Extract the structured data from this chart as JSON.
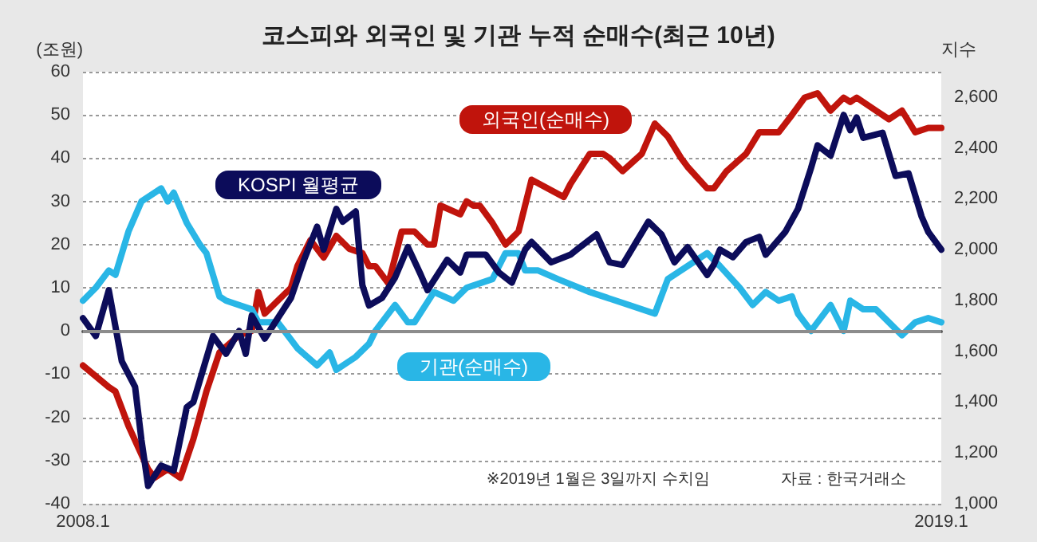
{
  "chart_data": {
    "type": "line",
    "title": "코스피와 외국인 및 기관 누적 순매수(최근 10년)",
    "ylabel": "(조원)",
    "y2label": "지수",
    "annotations": [
      "※2019년 1월은 3일까지 수치임",
      "자료 : 한국거래소"
    ],
    "xlim": [
      "2008-01",
      "2019-01"
    ],
    "xticks": [
      {
        "value": "2008-01",
        "label": "2008.1"
      },
      {
        "value": "2019-01",
        "label": "2019.1"
      }
    ],
    "ylim": [
      -40,
      60
    ],
    "yticks": [
      -40,
      -30,
      -20,
      -10,
      0,
      10,
      20,
      30,
      40,
      50,
      60
    ],
    "y2lim": [
      1000,
      2700
    ],
    "y2ticks": [
      {
        "value": 1000,
        "label": "1,000"
      },
      {
        "value": 1200,
        "label": "1,200"
      },
      {
        "value": 1400,
        "label": "1,400"
      },
      {
        "value": 1600,
        "label": "1,600"
      },
      {
        "value": 1800,
        "label": "1,800"
      },
      {
        "value": 2000,
        "label": "2,000"
      },
      {
        "value": 2200,
        "label": "2,200"
      },
      {
        "value": 2400,
        "label": "2,400"
      },
      {
        "value": 2600,
        "label": "2,600"
      }
    ],
    "grid": "y",
    "legend": false,
    "marker": "none",
    "line_style": "solid",
    "ref_lines": [
      {
        "axis": "y",
        "value": 0,
        "color": "#8c8c8c"
      }
    ],
    "series": [
      {
        "name": "외국인(순매수)",
        "color": "#c0140c",
        "x": [
          "2008-01",
          "2008-05",
          "2008-06",
          "2008-08",
          "2008-11",
          "2008-12",
          "2009-02",
          "2009-04",
          "2009-06",
          "2009-08",
          "2009-10",
          "2010-01",
          "2010-03",
          "2010-04",
          "2010-05",
          "2010-07",
          "2010-09",
          "2010-10",
          "2010-12",
          "2011-02",
          "2011-04",
          "2011-06",
          "2011-08",
          "2011-09",
          "2011-10",
          "2011-12",
          "2012-02",
          "2012-04",
          "2012-06",
          "2012-07",
          "2012-08",
          "2012-11",
          "2012-12",
          "2013-01",
          "2013-02",
          "2013-04",
          "2013-06",
          "2013-08",
          "2013-10",
          "2014-03",
          "2014-04",
          "2014-07",
          "2014-09",
          "2014-10",
          "2014-12",
          "2015-03",
          "2015-05",
          "2015-07",
          "2015-09",
          "2015-10",
          "2016-01",
          "2016-02",
          "2016-04",
          "2016-07",
          "2016-09",
          "2016-12",
          "2017-02",
          "2017-04",
          "2017-06",
          "2017-08",
          "2017-10",
          "2017-11",
          "2017-12",
          "2018-03",
          "2018-05",
          "2018-07",
          "2018-09",
          "2018-11",
          "2019-01"
        ],
        "values": [
          -8,
          -13,
          -14,
          -22,
          -32,
          -34,
          -32,
          -34,
          -25,
          -14,
          -5,
          -1,
          0,
          9,
          4,
          7,
          10,
          15,
          21,
          17,
          22,
          19,
          18,
          15,
          15,
          11,
          23,
          23,
          20,
          20,
          29,
          27,
          30,
          29,
          29,
          25,
          20,
          23,
          35,
          31,
          34,
          41,
          41,
          40,
          37,
          41,
          48,
          45,
          40,
          38,
          33,
          33,
          37,
          41,
          46,
          46,
          50,
          54,
          55,
          51,
          54,
          53,
          54,
          51,
          49,
          51,
          46,
          47,
          47
        ]
      },
      {
        "name": "KOSPI 월평균",
        "color": "#0c0c5a",
        "axis": "y2",
        "x": [
          "2008-01",
          "2008-03",
          "2008-05",
          "2008-07",
          "2008-09",
          "2008-10",
          "2008-11",
          "2009-01",
          "2009-03",
          "2009-05",
          "2009-06",
          "2009-09",
          "2009-11",
          "2010-01",
          "2010-02",
          "2010-03",
          "2010-05",
          "2010-07",
          "2010-09",
          "2010-11",
          "2011-01",
          "2011-02",
          "2011-04",
          "2011-05",
          "2011-07",
          "2011-08",
          "2011-09",
          "2011-11",
          "2012-01",
          "2012-03",
          "2012-05",
          "2012-06",
          "2012-09",
          "2012-11",
          "2012-12",
          "2013-03",
          "2013-05",
          "2013-07",
          "2013-09",
          "2013-10",
          "2014-01",
          "2014-04",
          "2014-05",
          "2014-08",
          "2014-10",
          "2014-12",
          "2015-04",
          "2015-06",
          "2015-08",
          "2015-10",
          "2016-01",
          "2016-02",
          "2016-03",
          "2016-05",
          "2016-07",
          "2016-09",
          "2016-10",
          "2017-01",
          "2017-03",
          "2017-05",
          "2017-06",
          "2017-08",
          "2017-10",
          "2017-11",
          "2017-12",
          "2018-01",
          "2018-04",
          "2018-06",
          "2018-08",
          "2018-10",
          "2018-11",
          "2019-01"
        ],
        "values": [
          1730,
          1660,
          1840,
          1560,
          1460,
          1250,
          1070,
          1150,
          1130,
          1380,
          1400,
          1660,
          1590,
          1680,
          1590,
          1740,
          1650,
          1730,
          1810,
          1960,
          2090,
          2000,
          2160,
          2110,
          2150,
          1860,
          1780,
          1810,
          1890,
          2010,
          1900,
          1840,
          1960,
          1910,
          1980,
          1980,
          1910,
          1870,
          2000,
          2030,
          1950,
          1980,
          2000,
          2060,
          1950,
          1940,
          2110,
          2060,
          1950,
          2010,
          1900,
          1940,
          2000,
          1970,
          2030,
          2050,
          1980,
          2070,
          2160,
          2320,
          2410,
          2370,
          2530,
          2470,
          2520,
          2440,
          2460,
          2290,
          2300,
          2130,
          2070,
          2000
        ]
      },
      {
        "name": "기관(순매수)",
        "color": "#29b6e6",
        "x": [
          "2008-01",
          "2008-03",
          "2008-05",
          "2008-06",
          "2008-08",
          "2008-10",
          "2009-01",
          "2009-02",
          "2009-03",
          "2009-05",
          "2009-07",
          "2009-08",
          "2009-10",
          "2009-11",
          "2010-01",
          "2010-03",
          "2010-04",
          "2010-07",
          "2010-08",
          "2010-10",
          "2011-01",
          "2011-03",
          "2011-04",
          "2011-07",
          "2011-09",
          "2011-10",
          "2012-01",
          "2012-03",
          "2012-04",
          "2012-07",
          "2012-10",
          "2012-12",
          "2013-04",
          "2013-06",
          "2013-08",
          "2013-09",
          "2013-11",
          "2014-02",
          "2014-07",
          "2015-01",
          "2015-05",
          "2015-07",
          "2015-10",
          "2016-01",
          "2016-03",
          "2016-06",
          "2016-08",
          "2016-10",
          "2016-12",
          "2017-02",
          "2017-03",
          "2017-05",
          "2017-08",
          "2017-10",
          "2017-11",
          "2018-01",
          "2018-03",
          "2018-05",
          "2018-07",
          "2018-09",
          "2018-11",
          "2019-01"
        ],
        "values": [
          7,
          10,
          14,
          13,
          23,
          30,
          33,
          30,
          32,
          25,
          20,
          18,
          8,
          7,
          6,
          5,
          2,
          2,
          0,
          -4,
          -8,
          -5,
          -9,
          -6,
          -3,
          0,
          6,
          2,
          2,
          9,
          7,
          10,
          12,
          18,
          18,
          14,
          14,
          12,
          9,
          6,
          4,
          12,
          15,
          18,
          15,
          10,
          6,
          9,
          7,
          8,
          4,
          0,
          6,
          0,
          7,
          5,
          5,
          2,
          -1,
          2,
          3,
          2
        ]
      }
    ]
  }
}
